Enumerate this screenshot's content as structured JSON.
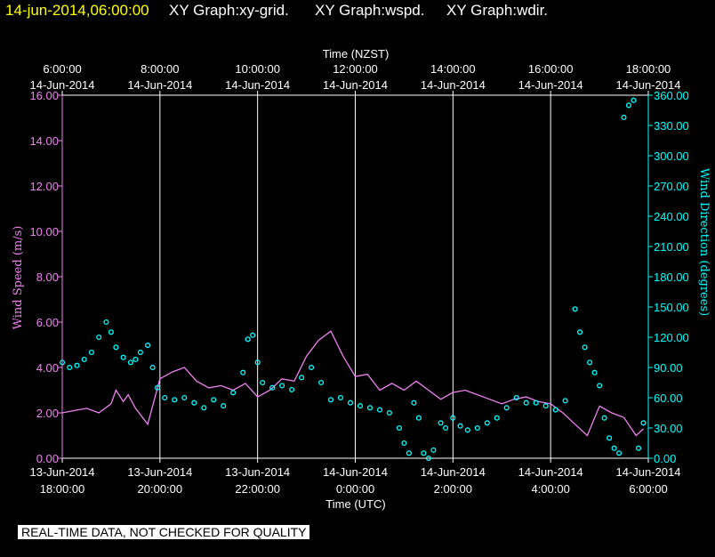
{
  "header": {
    "timestamp": "14-jun-2014,06:00:00",
    "graph_titles": [
      "XY Graph:xy-grid.",
      "XY Graph:wspd.",
      "XY Graph:wdir."
    ]
  },
  "notice": "REAL-TIME DATA, NOT CHECKED FOR QUALITY",
  "colors": {
    "speed": "#ee82ee",
    "direction": "#00ffff",
    "grid": "#ffffff",
    "text": "#ffffff",
    "timestamp": "#ffff00"
  },
  "chart_data": {
    "type": "line",
    "top_axis": {
      "label": "Time (NZST)",
      "ticks": [
        {
          "time": "6:00:00",
          "date": "14-Jun-2014"
        },
        {
          "time": "8:00:00",
          "date": "14-Jun-2014"
        },
        {
          "time": "10:00:00",
          "date": "14-Jun-2014"
        },
        {
          "time": "12:00:00",
          "date": "14-Jun-2014"
        },
        {
          "time": "14:00:00",
          "date": "14-Jun-2014"
        },
        {
          "time": "16:00:00",
          "date": "14-Jun-2014"
        },
        {
          "time": "18:00:00",
          "date": "14-Jun-2014"
        }
      ]
    },
    "bottom_axis": {
      "label": "Time (UTC)",
      "ticks": [
        {
          "date": "13-Jun-2014",
          "time": "18:00:00"
        },
        {
          "date": "13-Jun-2014",
          "time": "20:00:00"
        },
        {
          "date": "13-Jun-2014",
          "time": "22:00:00"
        },
        {
          "date": "14-Jun-2014",
          "time": "0:00:00"
        },
        {
          "date": "14-Jun-2014",
          "time": "2:00:00"
        },
        {
          "date": "14-Jun-2014",
          "time": "4:00:00"
        },
        {
          "date": "14-Jun-2014",
          "time": "6:00:00"
        }
      ],
      "range": [
        "13-Jun-2014 18:00:00",
        "14-Jun-2014 6:00:00"
      ]
    },
    "left_axis": {
      "label": "Wind Speed (m/s)",
      "ylim": [
        0,
        16
      ],
      "ticks": [
        "0.00",
        "2.00",
        "4.00",
        "6.00",
        "8.00",
        "10.00",
        "12.00",
        "14.00",
        "16.00"
      ]
    },
    "right_axis": {
      "label": "Wind Direction (degrees)",
      "ylim": [
        0,
        360
      ],
      "ticks": [
        "0.00",
        "30.00",
        "60.00",
        "90.00",
        "120.00",
        "150.00",
        "180.00",
        "210.00",
        "240.00",
        "270.00",
        "300.00",
        "330.00",
        "360.00"
      ]
    },
    "grid": true,
    "series": [
      {
        "name": "wspd",
        "axis": "left",
        "style": "line",
        "x_hours_utc": [
          0,
          0.25,
          0.5,
          0.75,
          1.0,
          1.1,
          1.25,
          1.35,
          1.5,
          1.75,
          2.0,
          2.25,
          2.5,
          2.75,
          3.0,
          3.25,
          3.5,
          3.75,
          4.0,
          4.25,
          4.5,
          4.75,
          5.0,
          5.25,
          5.5,
          5.75,
          6.0,
          6.25,
          6.5,
          6.75,
          7.0,
          7.25,
          7.5,
          7.75,
          8.0,
          8.25,
          8.5,
          8.75,
          9.0,
          9.25,
          9.5,
          9.75,
          10.0,
          10.25,
          10.5,
          10.75,
          11.0,
          11.25,
          11.5,
          11.75,
          11.9
        ],
        "values": [
          2.0,
          2.1,
          2.2,
          2.0,
          2.4,
          3.0,
          2.5,
          2.8,
          2.2,
          1.5,
          3.5,
          3.8,
          4.0,
          3.4,
          3.1,
          3.2,
          3.0,
          3.3,
          2.7,
          3.0,
          3.5,
          3.4,
          4.5,
          5.2,
          5.6,
          4.5,
          3.6,
          3.7,
          3.0,
          3.3,
          3.0,
          3.4,
          3.0,
          2.6,
          2.9,
          3.0,
          2.8,
          2.6,
          2.4,
          2.6,
          2.7,
          2.5,
          2.4,
          2.0,
          1.5,
          1.0,
          2.3,
          2.0,
          1.8,
          1.0,
          1.3
        ]
      },
      {
        "name": "wdir",
        "axis": "right",
        "style": "points",
        "x_hours_utc": [
          0,
          0.15,
          0.3,
          0.45,
          0.6,
          0.75,
          0.9,
          1.0,
          1.1,
          1.25,
          1.4,
          1.5,
          1.6,
          1.75,
          1.85,
          1.95,
          2.1,
          2.3,
          2.5,
          2.7,
          2.9,
          3.1,
          3.3,
          3.5,
          3.7,
          3.8,
          3.9,
          4.0,
          4.1,
          4.3,
          4.5,
          4.7,
          4.9,
          5.1,
          5.3,
          5.5,
          5.7,
          5.9,
          6.1,
          6.3,
          6.5,
          6.7,
          6.9,
          7.0,
          7.1,
          7.2,
          7.3,
          7.4,
          7.5,
          7.6,
          7.75,
          7.85,
          8.0,
          8.15,
          8.3,
          8.5,
          8.7,
          8.9,
          9.1,
          9.3,
          9.5,
          9.7,
          9.9,
          10.1,
          10.3,
          10.5,
          10.6,
          10.7,
          10.8,
          10.9,
          11.0,
          11.1,
          11.2,
          11.3,
          11.4,
          11.5,
          11.6,
          11.7,
          11.8,
          11.9
        ],
        "values": [
          95,
          90,
          92,
          98,
          105,
          120,
          135,
          125,
          110,
          100,
          95,
          98,
          105,
          112,
          90,
          70,
          60,
          58,
          60,
          55,
          50,
          58,
          52,
          65,
          85,
          118,
          122,
          95,
          75,
          70,
          72,
          68,
          80,
          90,
          75,
          58,
          60,
          55,
          52,
          50,
          48,
          45,
          30,
          15,
          5,
          55,
          40,
          5,
          0,
          8,
          35,
          30,
          40,
          32,
          28,
          30,
          35,
          40,
          50,
          60,
          55,
          55,
          52,
          48,
          57,
          148,
          125,
          110,
          95,
          85,
          72,
          40,
          20,
          10,
          5,
          338,
          350,
          355,
          10,
          35
        ]
      }
    ]
  }
}
